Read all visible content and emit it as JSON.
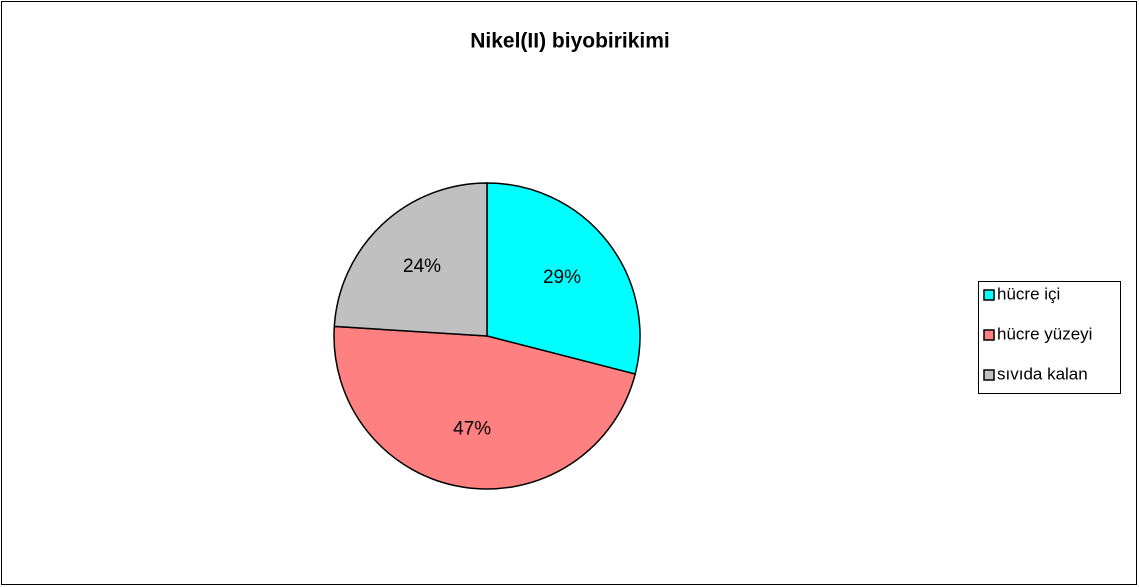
{
  "chart_data": {
    "type": "pie",
    "title": "Nikel(II) biyobirikimi",
    "categories": [
      "hücre içi",
      "hücre yüzeyi",
      "sıvıda kalan"
    ],
    "values": [
      29,
      47,
      24
    ],
    "value_labels": [
      "29%",
      "47%",
      "24%"
    ],
    "colors": [
      "#00ffff",
      "#ff8080",
      "#c0c0c0"
    ],
    "legend": "right"
  }
}
